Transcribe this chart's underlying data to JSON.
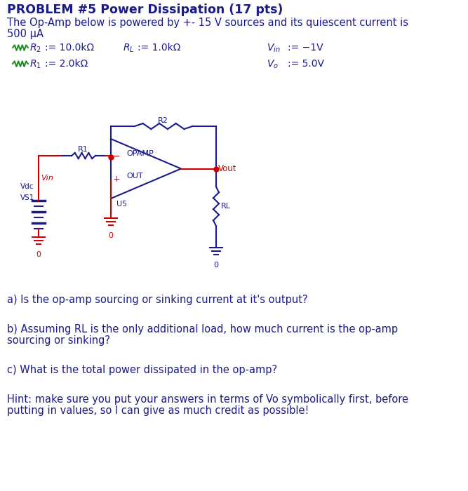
{
  "title": "PROBLEM #5 Power Dissipation (17 pts)",
  "subtitle1": "The Op-Amp below is powered by +- 15 V sources and its quiescent current is",
  "subtitle2": "500 μA",
  "title_color": "#1a1a8c",
  "text_color": "#1a1a8c",
  "circuit_blue": "#1a1a8c",
  "circuit_red": "#cc0000",
  "resistor_green": "#228B22",
  "bg_color": "#ffffff",
  "q_a": "a) Is the op-amp sourcing or sinking current at it's output?",
  "q_b1": "b) Assuming RL is the only additional load, how much current is the op-amp",
  "q_b2": "sourcing or sinking?",
  "q_c": "c) What is the total power dissipated in the op-amp?",
  "q_hint1": "Hint: make sure you put your answers in terms of Vo symbolically first, before",
  "q_hint2": "putting in values, so I can give as much credit as possible!"
}
